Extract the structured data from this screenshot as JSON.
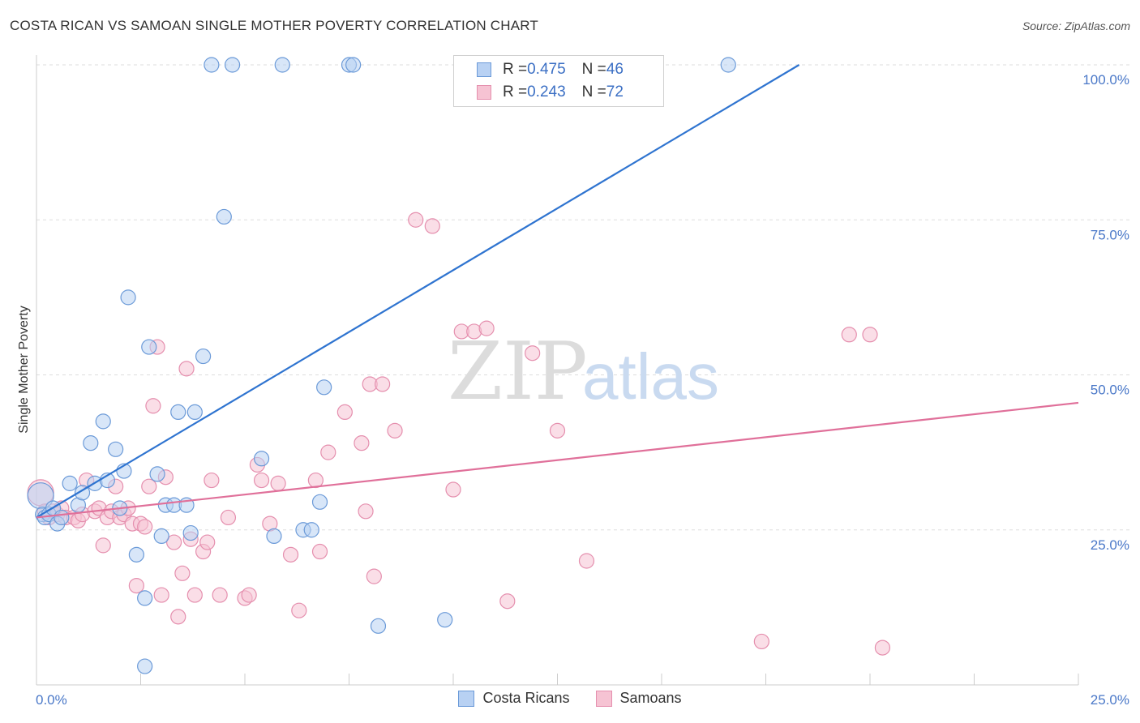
{
  "header": {
    "title": "COSTA RICAN VS SAMOAN SINGLE MOTHER POVERTY CORRELATION CHART",
    "source": "Source: ZipAtlas.com"
  },
  "watermark": {
    "zip": "ZIP",
    "atlas": "atlas"
  },
  "legend": {
    "rows": [
      {
        "r_label": "R = ",
        "r_value": "0.475",
        "n_label": "N = ",
        "n_value": "46"
      },
      {
        "r_label": "R = ",
        "r_value": "0.243",
        "n_label": "N = ",
        "n_value": "72"
      }
    ],
    "bottom": [
      {
        "label": "Costa Ricans"
      },
      {
        "label": "Samoans"
      }
    ]
  },
  "colors": {
    "blue_fill": "#b8d1f3",
    "blue_stroke": "#6b9ad8",
    "blue_line": "#2f74d0",
    "pink_fill": "#f6c3d3",
    "pink_stroke": "#e58fae",
    "pink_line": "#e0709a",
    "grid": "#dddddd",
    "tick_text": "#4a78c8"
  },
  "chart_data": {
    "type": "scatter",
    "title": "COSTA RICAN VS SAMOAN SINGLE MOTHER POVERTY CORRELATION CHART",
    "xlabel": "",
    "ylabel": "Single Mother Poverty",
    "xlim": [
      0,
      25
    ],
    "ylim": [
      0,
      102
    ],
    "x_tick_labels": [
      "0.0%",
      "25.0%"
    ],
    "y_ticks": [
      25,
      50,
      75,
      100
    ],
    "y_tick_labels": [
      "25.0%",
      "50.0%",
      "75.0%",
      "100.0%"
    ],
    "grid": true,
    "legend_position": "top-center",
    "series": [
      {
        "name": "Costa Ricans",
        "color": "#b8d1f3",
        "points": [
          [
            0.1,
            30.5
          ],
          [
            0.15,
            27.5
          ],
          [
            0.2,
            27.0
          ],
          [
            0.3,
            27.5
          ],
          [
            0.4,
            28.5
          ],
          [
            0.5,
            26.0
          ],
          [
            0.6,
            27.0
          ],
          [
            0.8,
            32.5
          ],
          [
            1.0,
            29.0
          ],
          [
            1.1,
            31.0
          ],
          [
            1.3,
            39.0
          ],
          [
            1.4,
            32.5
          ],
          [
            1.6,
            42.5
          ],
          [
            1.7,
            33.0
          ],
          [
            1.9,
            38.0
          ],
          [
            2.0,
            28.5
          ],
          [
            2.1,
            34.5
          ],
          [
            2.2,
            62.5
          ],
          [
            2.4,
            21.0
          ],
          [
            2.6,
            14.0
          ],
          [
            2.6,
            3.0
          ],
          [
            2.7,
            54.5
          ],
          [
            2.9,
            34.0
          ],
          [
            3.0,
            24.0
          ],
          [
            3.1,
            29.0
          ],
          [
            3.3,
            29.0
          ],
          [
            3.4,
            44.0
          ],
          [
            3.6,
            29.0
          ],
          [
            3.7,
            24.5
          ],
          [
            3.8,
            44.0
          ],
          [
            4.0,
            53.0
          ],
          [
            4.2,
            100.0
          ],
          [
            4.5,
            75.5
          ],
          [
            4.7,
            100.0
          ],
          [
            5.4,
            36.5
          ],
          [
            5.7,
            24.0
          ],
          [
            5.9,
            100.0
          ],
          [
            6.4,
            25.0
          ],
          [
            6.6,
            25.0
          ],
          [
            6.8,
            29.5
          ],
          [
            6.9,
            48.0
          ],
          [
            7.5,
            100.0
          ],
          [
            7.6,
            100.0
          ],
          [
            8.2,
            9.5
          ],
          [
            9.8,
            10.5
          ],
          [
            16.6,
            100.0
          ]
        ],
        "trendline": {
          "x": [
            0,
            18.3
          ],
          "y": [
            27.0,
            100.0
          ]
        }
      },
      {
        "name": "Samoans",
        "color": "#f6c3d3",
        "points": [
          [
            0.1,
            31.0
          ],
          [
            0.2,
            28.0
          ],
          [
            0.3,
            27.0
          ],
          [
            0.4,
            28.0
          ],
          [
            0.5,
            27.5
          ],
          [
            0.6,
            28.5
          ],
          [
            0.7,
            27.0
          ],
          [
            0.9,
            27.0
          ],
          [
            1.0,
            26.5
          ],
          [
            1.1,
            27.5
          ],
          [
            1.2,
            33.0
          ],
          [
            1.4,
            28.0
          ],
          [
            1.5,
            28.5
          ],
          [
            1.6,
            22.5
          ],
          [
            1.7,
            27.0
          ],
          [
            1.8,
            28.0
          ],
          [
            1.9,
            32.0
          ],
          [
            2.0,
            27.0
          ],
          [
            2.1,
            27.5
          ],
          [
            2.2,
            28.5
          ],
          [
            2.3,
            26.0
          ],
          [
            2.4,
            16.0
          ],
          [
            2.5,
            26.0
          ],
          [
            2.6,
            25.5
          ],
          [
            2.7,
            32.0
          ],
          [
            2.8,
            45.0
          ],
          [
            2.9,
            54.5
          ],
          [
            3.0,
            14.5
          ],
          [
            3.1,
            33.5
          ],
          [
            3.3,
            23.0
          ],
          [
            3.4,
            11.0
          ],
          [
            3.5,
            18.0
          ],
          [
            3.6,
            51.0
          ],
          [
            3.7,
            23.5
          ],
          [
            3.8,
            14.5
          ],
          [
            4.0,
            21.5
          ],
          [
            4.1,
            23.0
          ],
          [
            4.2,
            33.0
          ],
          [
            4.4,
            14.5
          ],
          [
            4.6,
            27.0
          ],
          [
            5.0,
            14.0
          ],
          [
            5.1,
            14.5
          ],
          [
            5.3,
            35.5
          ],
          [
            5.4,
            33.0
          ],
          [
            5.6,
            26.0
          ],
          [
            5.8,
            32.5
          ],
          [
            6.1,
            21.0
          ],
          [
            6.3,
            12.0
          ],
          [
            6.7,
            33.0
          ],
          [
            6.8,
            21.5
          ],
          [
            7.0,
            37.5
          ],
          [
            7.4,
            44.0
          ],
          [
            7.8,
            39.0
          ],
          [
            7.9,
            28.0
          ],
          [
            8.0,
            48.5
          ],
          [
            8.1,
            17.5
          ],
          [
            8.3,
            48.5
          ],
          [
            8.6,
            41.0
          ],
          [
            9.1,
            75.0
          ],
          [
            9.5,
            74.0
          ],
          [
            10.0,
            31.5
          ],
          [
            10.2,
            57.0
          ],
          [
            10.5,
            57.0
          ],
          [
            10.8,
            57.5
          ],
          [
            11.3,
            13.5
          ],
          [
            11.9,
            53.5
          ],
          [
            12.5,
            41.0
          ],
          [
            13.2,
            20.0
          ],
          [
            17.4,
            7.0
          ],
          [
            19.5,
            56.5
          ],
          [
            20.0,
            56.5
          ],
          [
            20.3,
            6.0
          ]
        ],
        "trendline": {
          "x": [
            0,
            25.0
          ],
          "y": [
            27.0,
            45.5
          ]
        }
      }
    ]
  }
}
